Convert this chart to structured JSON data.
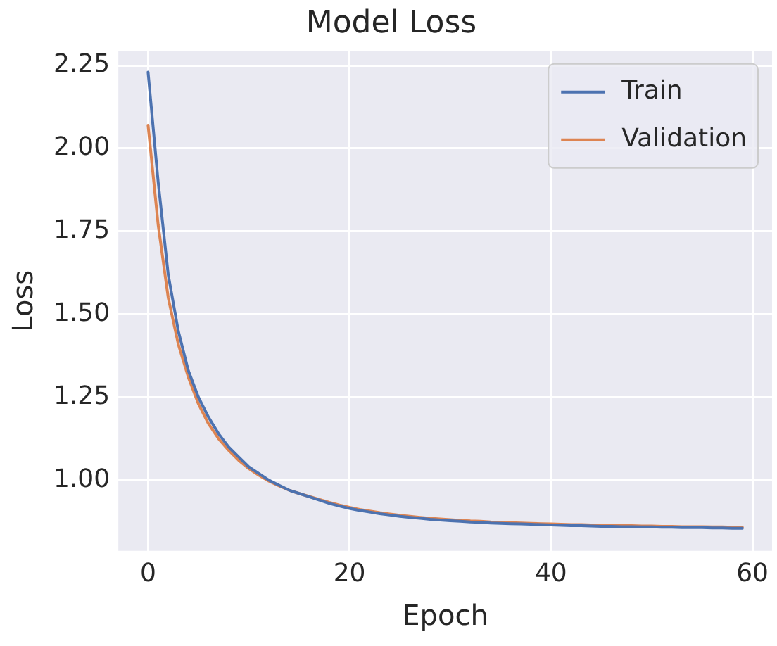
{
  "chart_data": {
    "type": "line",
    "title": "Model Loss",
    "xlabel": "Epoch",
    "ylabel": "Loss",
    "x": [
      0,
      1,
      2,
      3,
      4,
      5,
      6,
      7,
      8,
      9,
      10,
      11,
      12,
      13,
      14,
      15,
      16,
      17,
      18,
      19,
      20,
      21,
      22,
      23,
      24,
      25,
      26,
      27,
      28,
      29,
      30,
      31,
      32,
      33,
      34,
      35,
      36,
      37,
      38,
      39,
      40,
      41,
      42,
      43,
      44,
      45,
      46,
      47,
      48,
      49,
      50,
      51,
      52,
      53,
      54,
      55,
      56,
      57,
      58,
      59
    ],
    "series": [
      {
        "name": "Train",
        "color": "#4c72b0",
        "values": [
          2.23,
          1.9,
          1.62,
          1.45,
          1.33,
          1.25,
          1.19,
          1.14,
          1.1,
          1.07,
          1.04,
          1.02,
          1.0,
          0.985,
          0.97,
          0.96,
          0.95,
          0.94,
          0.93,
          0.922,
          0.915,
          0.909,
          0.904,
          0.899,
          0.895,
          0.891,
          0.888,
          0.885,
          0.882,
          0.88,
          0.878,
          0.876,
          0.874,
          0.873,
          0.871,
          0.87,
          0.869,
          0.868,
          0.867,
          0.866,
          0.865,
          0.864,
          0.863,
          0.863,
          0.862,
          0.861,
          0.861,
          0.86,
          0.86,
          0.859,
          0.859,
          0.858,
          0.858,
          0.857,
          0.857,
          0.857,
          0.856,
          0.856,
          0.855,
          0.855
        ]
      },
      {
        "name": "Validation",
        "color": "#dd8452",
        "values": [
          2.07,
          1.77,
          1.55,
          1.41,
          1.31,
          1.23,
          1.17,
          1.125,
          1.09,
          1.06,
          1.035,
          1.015,
          0.997,
          0.983,
          0.97,
          0.96,
          0.951,
          0.942,
          0.933,
          0.925,
          0.918,
          0.912,
          0.907,
          0.902,
          0.898,
          0.894,
          0.891,
          0.888,
          0.885,
          0.883,
          0.881,
          0.879,
          0.877,
          0.876,
          0.874,
          0.873,
          0.872,
          0.871,
          0.87,
          0.869,
          0.868,
          0.867,
          0.866,
          0.866,
          0.865,
          0.864,
          0.864,
          0.863,
          0.863,
          0.862,
          0.862,
          0.861,
          0.861,
          0.86,
          0.86,
          0.86,
          0.859,
          0.859,
          0.858,
          0.858
        ]
      }
    ],
    "xlim": [
      -2.95,
      61.95
    ],
    "xticks": [
      0,
      20,
      40,
      60
    ],
    "ylim": [
      0.787,
      2.293
    ],
    "yticks": [
      {
        "value": 1,
        "label": "1.00"
      },
      {
        "value": 1.25,
        "label": "1.25"
      },
      {
        "value": 1.5,
        "label": "1.50"
      },
      {
        "value": 1.75,
        "label": "1.75"
      },
      {
        "value": 2,
        "label": "2.00"
      },
      {
        "value": 2.25,
        "label": "2.25"
      }
    ],
    "grid": true,
    "legend": "top right",
    "marker": "none",
    "line_style": "solid"
  }
}
